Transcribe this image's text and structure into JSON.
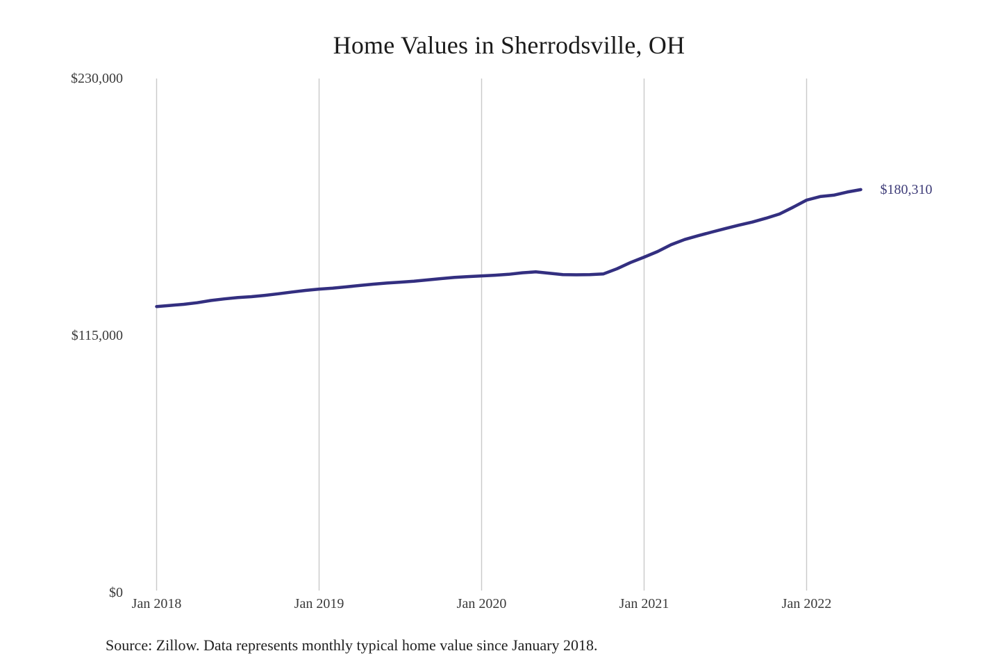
{
  "chart_data": {
    "type": "line",
    "title": "Home Values in Sherrodsville, OH",
    "series_name": "Monthly typical home value",
    "x": [
      "Jan 2018",
      "Feb 2018",
      "Mar 2018",
      "Apr 2018",
      "May 2018",
      "Jun 2018",
      "Jul 2018",
      "Aug 2018",
      "Sep 2018",
      "Oct 2018",
      "Nov 2018",
      "Dec 2018",
      "Jan 2019",
      "Feb 2019",
      "Mar 2019",
      "Apr 2019",
      "May 2019",
      "Jun 2019",
      "Jul 2019",
      "Aug 2019",
      "Sep 2019",
      "Oct 2019",
      "Nov 2019",
      "Dec 2019",
      "Jan 2020",
      "Feb 2020",
      "Mar 2020",
      "Apr 2020",
      "May 2020",
      "Jun 2020",
      "Jul 2020",
      "Aug 2020",
      "Sep 2020",
      "Oct 2020",
      "Nov 2020",
      "Dec 2020",
      "Jan 2021",
      "Feb 2021",
      "Mar 2021",
      "Apr 2021",
      "May 2021",
      "Jun 2021",
      "Jul 2021",
      "Aug 2021",
      "Sep 2021",
      "Oct 2021",
      "Nov 2021",
      "Dec 2021",
      "Jan 2022",
      "Feb 2022",
      "Mar 2022",
      "Apr 2022",
      "May 2022"
    ],
    "values": [
      128000,
      128500,
      129000,
      129700,
      130700,
      131400,
      132000,
      132400,
      133000,
      133700,
      134500,
      135200,
      135800,
      136200,
      136800,
      137400,
      138000,
      138500,
      138900,
      139300,
      139900,
      140500,
      141000,
      141400,
      141700,
      142000,
      142400,
      143100,
      143500,
      142900,
      142300,
      142200,
      142300,
      142600,
      144900,
      147700,
      150100,
      152600,
      155700,
      158000,
      159700,
      161300,
      162900,
      164400,
      165800,
      167500,
      169400,
      172400,
      175600,
      177200,
      177800,
      179200,
      180310
    ],
    "latest_value": 180310,
    "end_label": "$180,310",
    "ylim": [
      0,
      230000
    ],
    "y_ticks": [
      {
        "value": 230000,
        "label": "$230,000"
      },
      {
        "value": 115000,
        "label": "$115,000"
      },
      {
        "value": 0,
        "label": "$0"
      }
    ],
    "x_ticks": [
      {
        "index": 0,
        "label": "Jan 2018"
      },
      {
        "index": 12,
        "label": "Jan 2019"
      },
      {
        "index": 24,
        "label": "Jan 2020"
      },
      {
        "index": 36,
        "label": "Jan 2021"
      },
      {
        "index": 48,
        "label": "Jan 2022"
      }
    ],
    "grid": "vertical-year-gridlines",
    "legend": "none",
    "source": "Source: Zillow. Data represents monthly typical home value since January 2018.",
    "colors": {
      "line": "#332f80",
      "grid": "#c9c9c9",
      "end_label": "#3e3c78",
      "title": "#1b1b1b",
      "tick_label": "#3a3a3a",
      "source": "#1f1f1f"
    }
  }
}
